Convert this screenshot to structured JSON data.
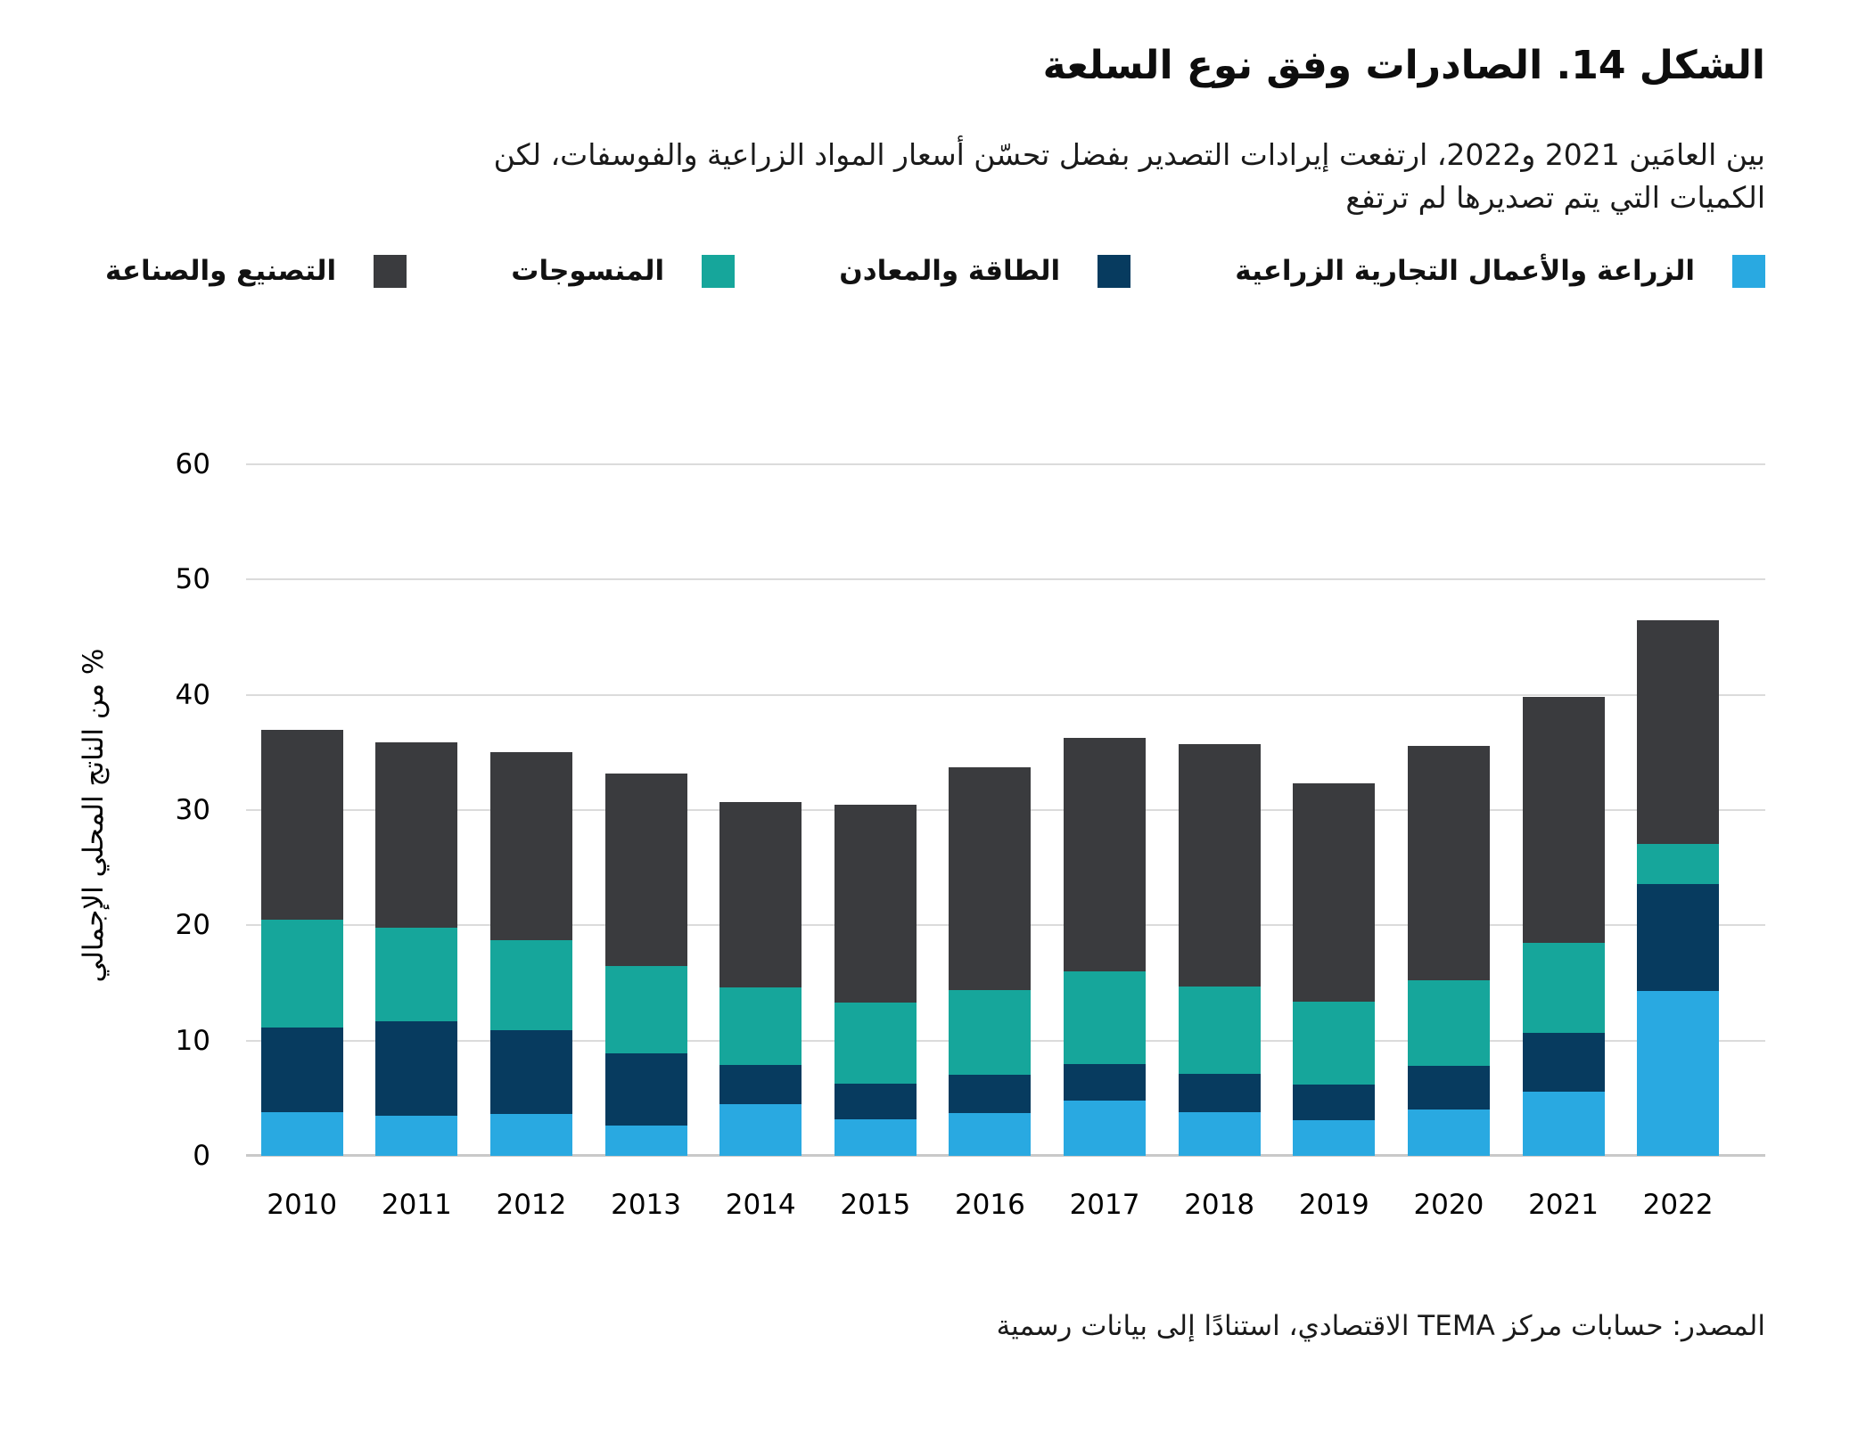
{
  "figure": {
    "title": "الشكل 14. الصادرات وفق نوع السلعة",
    "subtitle_lines": [
      "بين العامَين 2021 و2022، ارتفعت إيرادات التصدير بفضل تحسّن أسعار المواد الزراعية والفوسفات، لكن",
      "الكميات التي يتم تصديرها لم ترتفع"
    ],
    "source": "المصدر: حسابات مركز TEMA الاقتصادي، استنادًا إلى بيانات رسمية"
  },
  "chart_data": {
    "type": "bar",
    "stacked": true,
    "title": "الشكل 14. الصادرات وفق نوع السلعة",
    "categories": [
      "2010",
      "2011",
      "2012",
      "2013",
      "2014",
      "2015",
      "2016",
      "2017",
      "2018",
      "2019",
      "2020",
      "2021",
      "2022"
    ],
    "series": [
      {
        "key": "agriculture",
        "name": "الزراعة والأعمال التجارية الزراعية",
        "color": "#29A9E1",
        "values": [
          3.8,
          3.5,
          3.6,
          2.6,
          4.5,
          3.2,
          3.7,
          4.8,
          3.8,
          3.1,
          4.0,
          5.6,
          14.3
        ]
      },
      {
        "key": "energy",
        "name": "الطاقة والمعادن",
        "color": "#073B5F",
        "values": [
          7.3,
          8.2,
          7.3,
          6.3,
          3.4,
          3.1,
          3.3,
          3.2,
          3.3,
          3.1,
          3.8,
          5.1,
          9.3
        ]
      },
      {
        "key": "textiles",
        "name": "المنسوجات",
        "color": "#16A69B",
        "values": [
          9.4,
          8.1,
          7.8,
          7.6,
          6.7,
          7.0,
          7.4,
          8.0,
          7.6,
          7.2,
          7.4,
          7.8,
          3.5
        ]
      },
      {
        "key": "manufacturing",
        "name": "التصنيع والصناعة",
        "color": "#3A3B3E",
        "values": [
          16.5,
          16.1,
          16.3,
          16.7,
          16.1,
          17.2,
          19.3,
          20.3,
          21.0,
          18.9,
          20.4,
          21.3,
          19.4
        ]
      }
    ],
    "totals": [
      37.0,
      35.9,
      35.0,
      33.2,
      30.7,
      30.5,
      33.7,
      36.3,
      35.7,
      32.3,
      35.6,
      39.8,
      46.5
    ],
    "xlabel": "",
    "ylabel": "% من الناتج المحلي الإجمالي",
    "yticks": [
      0,
      10,
      20,
      30,
      40,
      50,
      60
    ],
    "ylim": [
      0,
      60
    ],
    "grid": true,
    "legend_position": "top",
    "legend_order_rtl": [
      "الزراعة والأعمال التجارية الزراعية",
      "الطاقة والمعادن",
      "المنسوجات",
      "التصنيع والصناعة"
    ]
  },
  "colors": {
    "agriculture": "#29A9E1",
    "energy": "#073B5F",
    "textiles": "#16A69B",
    "manufacturing": "#3A3B3E",
    "gridline": "#DBDBDB",
    "axis_line": "#C9C9C9"
  }
}
